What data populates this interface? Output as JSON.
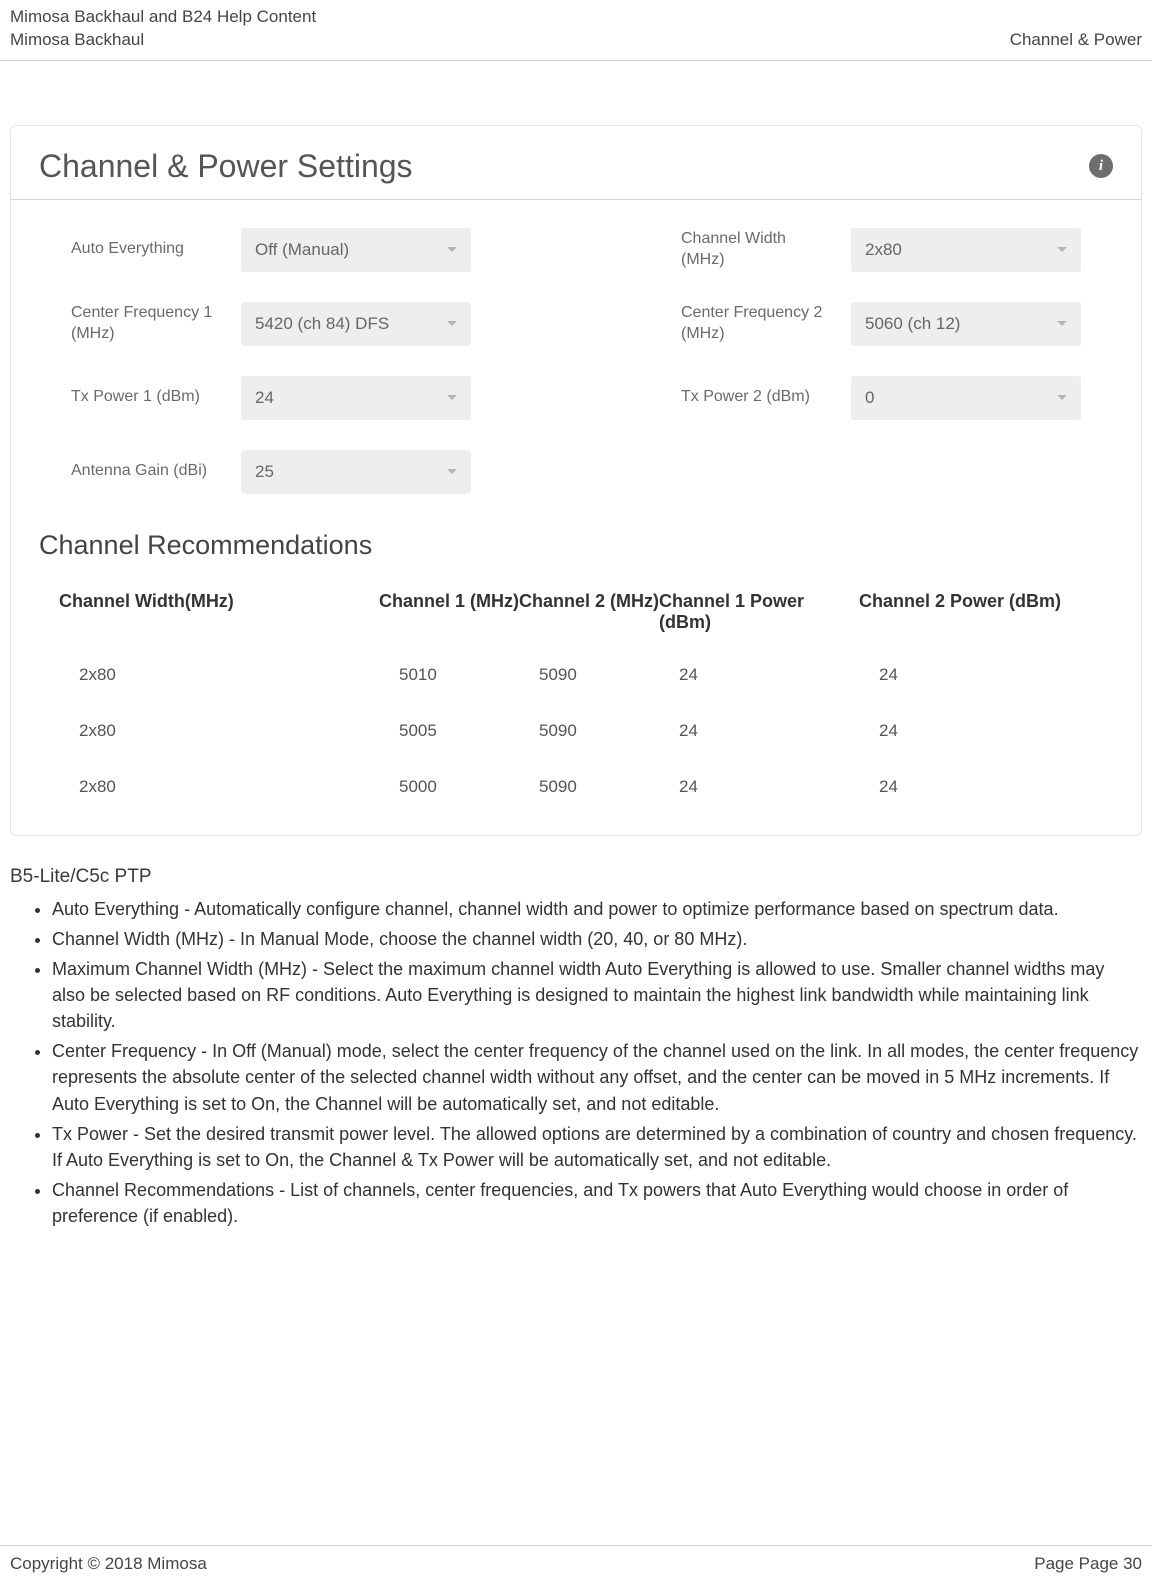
{
  "header": {
    "line1": "Mimosa Backhaul and B24 Help Content",
    "line2": "Mimosa Backhaul",
    "right": "Channel & Power"
  },
  "panel": {
    "title": "Channel & Power Settings",
    "info_icon_bg": "#6e6e6e",
    "fields": {
      "auto_everything": {
        "label": "Auto Everything",
        "value": "Off (Manual)"
      },
      "channel_width": {
        "label": "Channel Width (MHz)",
        "value": "2x80"
      },
      "center_freq_1": {
        "label": "Center Frequency 1 (MHz)",
        "value": "5420 (ch 84) DFS"
      },
      "center_freq_2": {
        "label": "Center Frequency 2 (MHz)",
        "value": "5060 (ch 12)"
      },
      "tx_power_1": {
        "label": "Tx Power 1 (dBm)",
        "value": "24"
      },
      "tx_power_2": {
        "label": "Tx Power 2 (dBm)",
        "value": "0"
      },
      "antenna_gain": {
        "label": "Antenna Gain (dBi)",
        "value": "25"
      }
    },
    "recommendations": {
      "heading": "Channel Recommendations",
      "columns": [
        "Channel Width(MHz)",
        "Channel 1 (MHz)",
        "Channel 2 (MHz)",
        "Channel 1 Power (dBm)",
        "Channel 2 Power (dBm)"
      ],
      "rows": [
        [
          "2x80",
          "5010",
          "5090",
          "24",
          "24"
        ],
        [
          "2x80",
          "5005",
          "5090",
          "24",
          "24"
        ],
        [
          "2x80",
          "5000",
          "5090",
          "24",
          "24"
        ]
      ]
    }
  },
  "body_text": {
    "section_heading": "B5-Lite/C5c PTP",
    "bullets": [
      "Auto Everything - Automatically configure channel, channel width and power to optimize performance based on spectrum data.",
      "Channel Width (MHz) - In Manual Mode, choose the channel width (20, 40, or 80 MHz).",
      "Maximum Channel Width (MHz) - Select the maximum channel width Auto Everything is allowed to use. Smaller channel widths may also be selected based on RF conditions. Auto Everything is designed to maintain the highest link bandwidth while maintaining link stability.",
      "Center Frequency - In Off (Manual) mode, select the center frequency of the channel used on the link. In all modes, the center frequency represents the absolute center of the selected channel width without any offset, and the center can be moved in 5 MHz increments. If Auto Everything is set to On, the Channel will be automatically set, and not editable.",
      "Tx Power - Set the desired transmit power level. The allowed options are determined by a combination of country and chosen frequency. If Auto Everything is set to On, the Channel & Tx Power will be automatically set, and not editable.",
      "Channel Recommendations - List of channels, center frequencies, and Tx powers that Auto Everything would choose in order of preference (if enabled)."
    ]
  },
  "footer": {
    "left": "Copyright © 2018 Mimosa",
    "right": "Page Page 30"
  },
  "colors": {
    "border": "#cccccc",
    "panel_border": "#e5e5e5",
    "select_bg": "#eeeeee",
    "text_muted": "#6a6a6a",
    "text_body": "#333333"
  }
}
